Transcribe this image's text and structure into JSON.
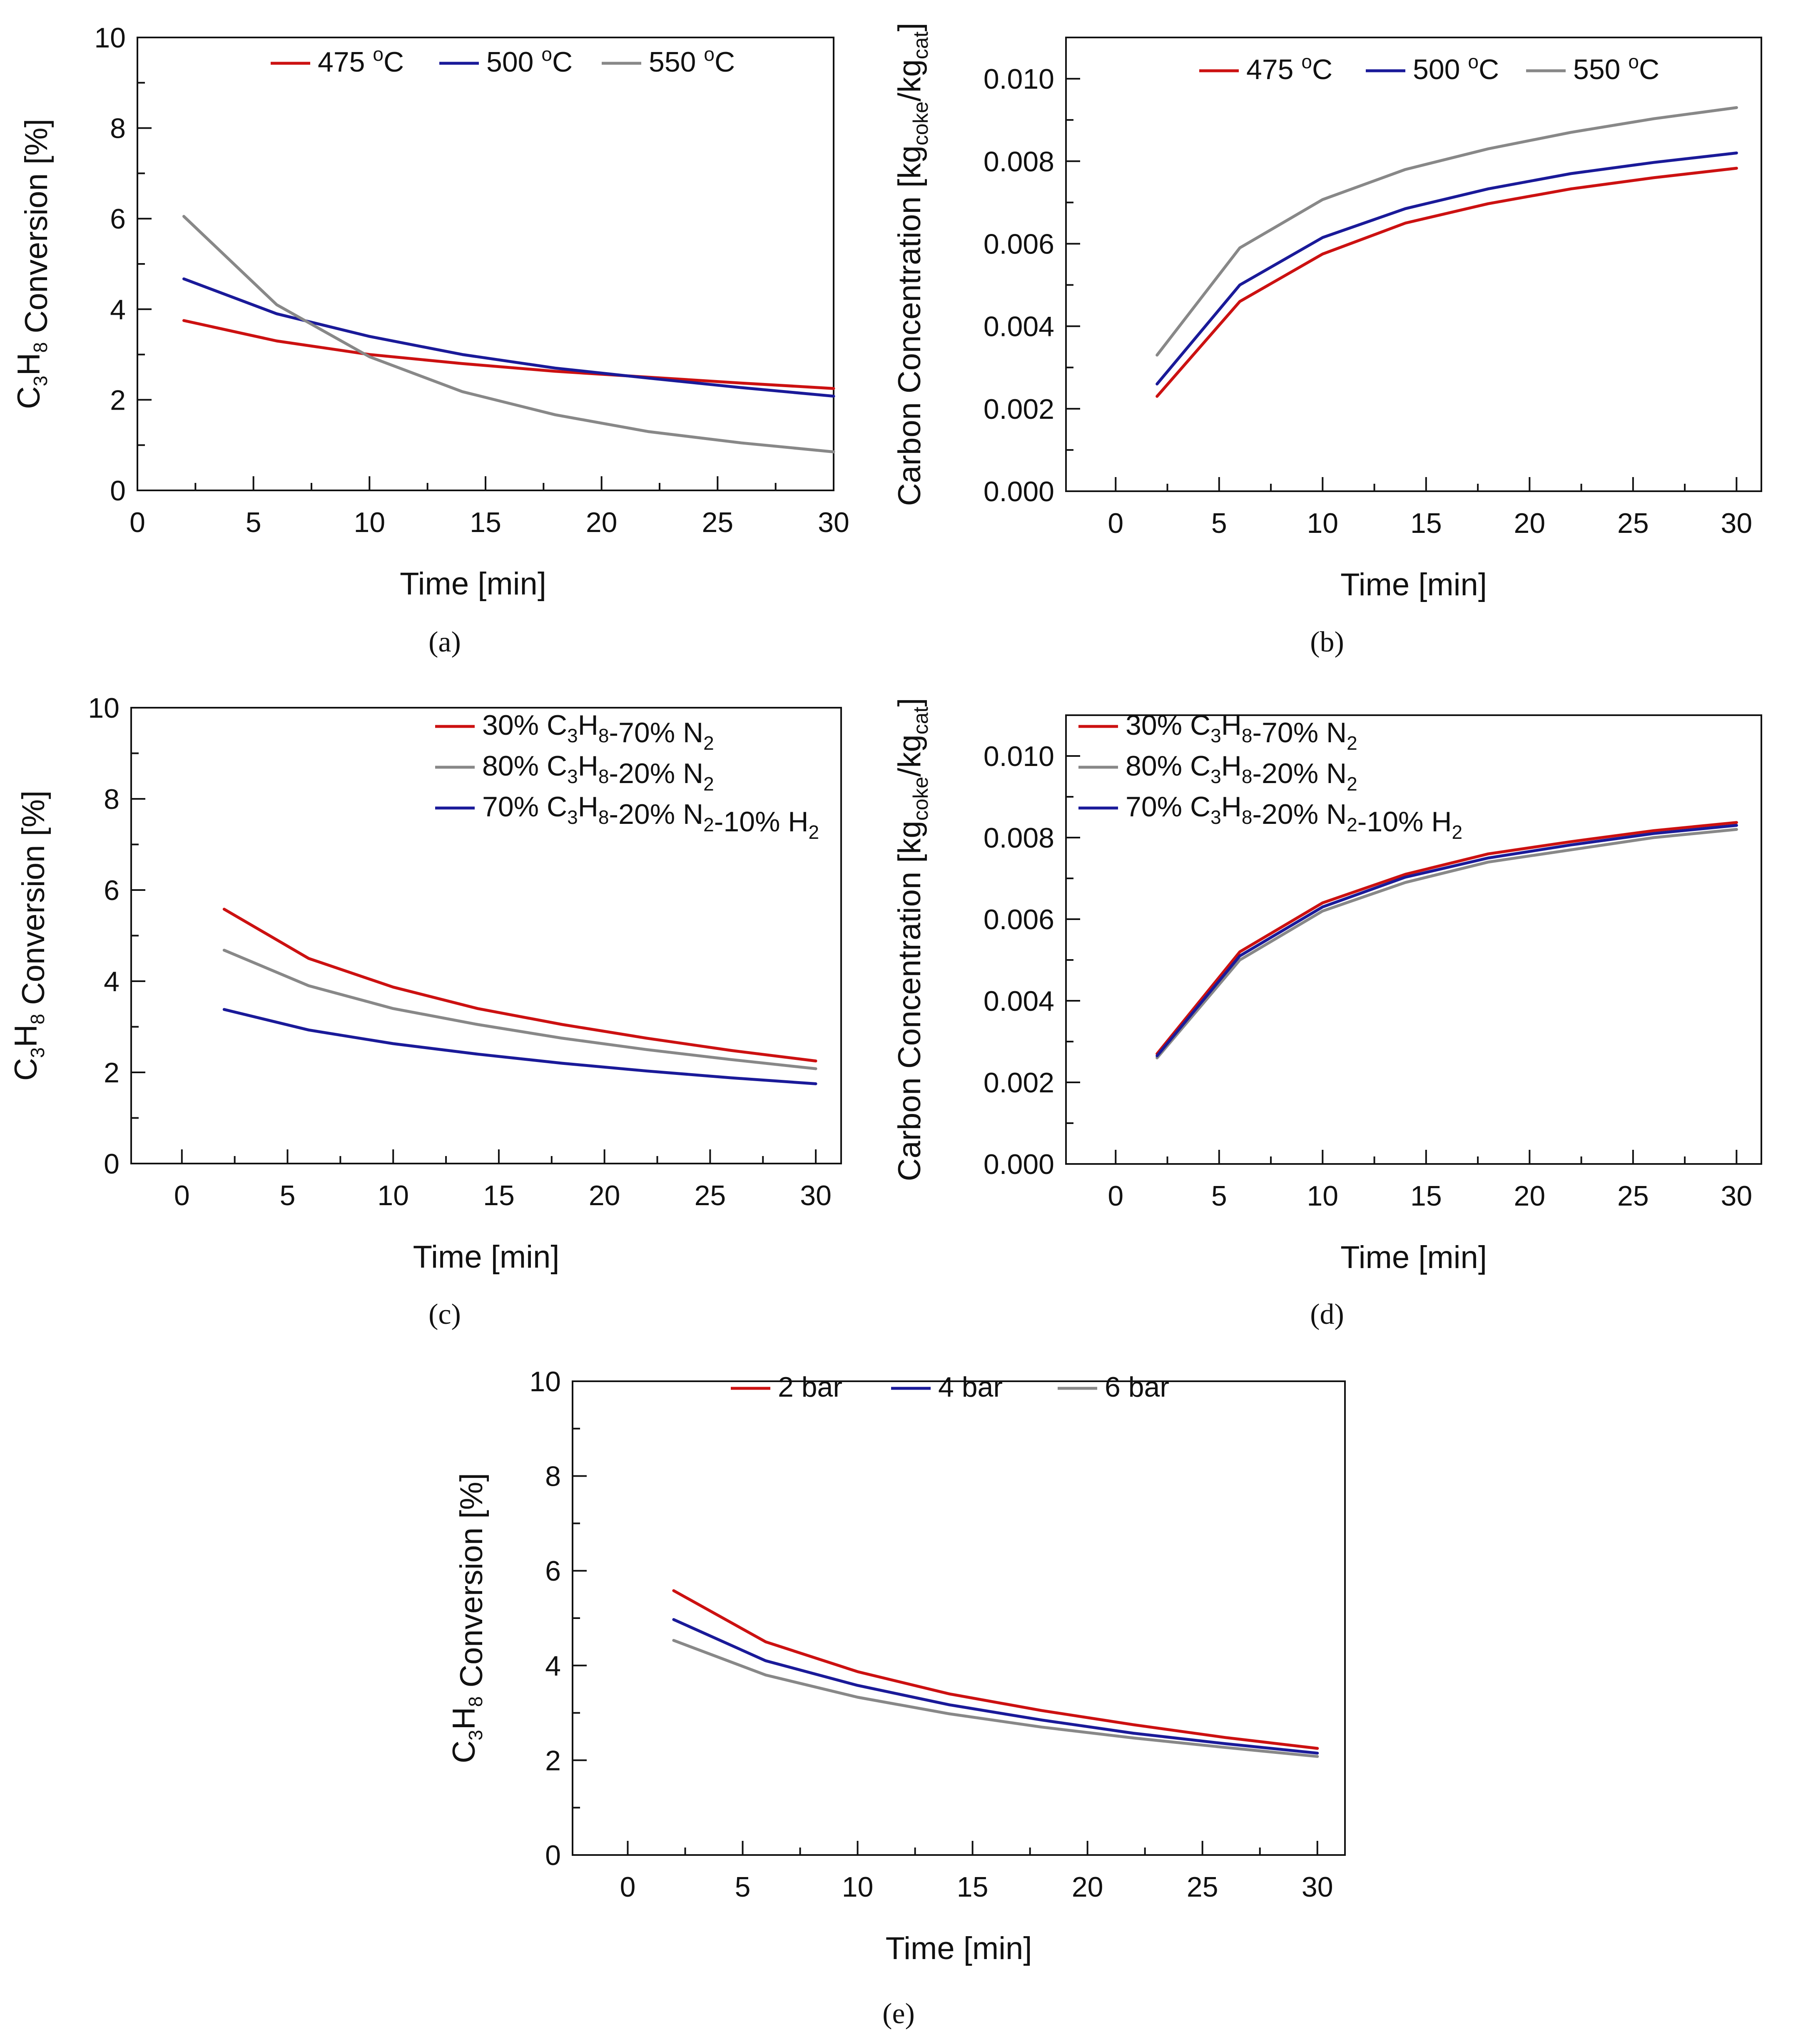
{
  "figure": {
    "panels": [
      {
        "caption": "(a)",
        "legend": [
          {
            "label_main": "475 ",
            "label_sup": "o",
            "label_tail": "C",
            "color": "#cc1111"
          },
          {
            "label_main": "500 ",
            "label_sup": "o",
            "label_tail": "C",
            "color": "#1a1a99"
          },
          {
            "label_main": "550 ",
            "label_sup": "o",
            "label_tail": "C",
            "color": "#888888"
          }
        ]
      },
      {
        "caption": "(b)",
        "legend": [
          {
            "label_main": "475 ",
            "label_sup": "o",
            "label_tail": "C",
            "color": "#cc1111"
          },
          {
            "label_main": "500 ",
            "label_sup": "o",
            "label_tail": "C",
            "color": "#1a1a99"
          },
          {
            "label_main": "550 ",
            "label_sup": "o",
            "label_tail": "C",
            "color": "#888888"
          }
        ]
      },
      {
        "caption": "(c)",
        "legend": [
          {
            "text": "30% C3H8-70% N2",
            "color": "#cc1111"
          },
          {
            "text": "80% C3H8-20% N2",
            "color": "#888888"
          },
          {
            "text": "70% C3H8-20% N2-10% H2",
            "color": "#1a1a99"
          }
        ]
      },
      {
        "caption": "(d)",
        "legend": [
          {
            "text": "30% C3H8-70% N2",
            "color": "#cc1111"
          },
          {
            "text": "80% C3H8-20% N2",
            "color": "#888888"
          },
          {
            "text": "70% C3H8-20% N2-10% H2",
            "color": "#1a1a99"
          }
        ]
      },
      {
        "caption": "(e)",
        "legend": [
          {
            "text": "2 bar",
            "color": "#cc1111"
          },
          {
            "text": "4 bar",
            "color": "#1a1a99"
          },
          {
            "text": "6 bar",
            "color": "#888888"
          }
        ]
      }
    ]
  },
  "chart_data": [
    {
      "type": "line",
      "panel": "a",
      "xlabel": "Time [min]",
      "ylabel": "C3H8 Conversion [%]",
      "xlim": [
        0,
        30
      ],
      "ylim": [
        0,
        10
      ],
      "xticks": [
        0,
        5,
        10,
        15,
        20,
        25,
        30
      ],
      "yticks": [
        0,
        2,
        4,
        6,
        8,
        10
      ],
      "ytick_labels": [
        "0",
        "2",
        "4",
        "6",
        "8",
        "10"
      ],
      "x": [
        2,
        6,
        10,
        14,
        18,
        22,
        26,
        30
      ],
      "series": [
        {
          "name": "475 oC",
          "color": "#cc1111",
          "values": [
            3.75,
            3.3,
            3.0,
            2.8,
            2.63,
            2.5,
            2.37,
            2.25
          ]
        },
        {
          "name": "500 oC",
          "color": "#1a1a99",
          "values": [
            4.67,
            3.9,
            3.4,
            3.0,
            2.7,
            2.48,
            2.27,
            2.08
          ]
        },
        {
          "name": "550 oC",
          "color": "#888888",
          "values": [
            6.05,
            4.1,
            2.95,
            2.18,
            1.67,
            1.3,
            1.05,
            0.85
          ]
        }
      ]
    },
    {
      "type": "line",
      "panel": "b",
      "xlabel": "Time [min]",
      "ylabel": "Carbon Concentration [kgcoke/kgcat]",
      "xlim": [
        -2.4,
        31.2
      ],
      "ylim": [
        0,
        0.011
      ],
      "xticks": [
        0,
        5,
        10,
        15,
        20,
        25,
        30
      ],
      "yticks": [
        0,
        0.002,
        0.004,
        0.006,
        0.008,
        0.01
      ],
      "ytick_labels": [
        "0.000",
        "0.002",
        "0.004",
        "0.006",
        "0.008",
        "0.010"
      ],
      "x": [
        2,
        6,
        10,
        14,
        18,
        22,
        26,
        30
      ],
      "series": [
        {
          "name": "475 oC",
          "color": "#cc1111",
          "values": [
            0.0023,
            0.0046,
            0.00575,
            0.0065,
            0.00697,
            0.00733,
            0.0076,
            0.00783
          ]
        },
        {
          "name": "500 oC",
          "color": "#1a1a99",
          "values": [
            0.0026,
            0.005,
            0.00615,
            0.00685,
            0.00733,
            0.0077,
            0.00797,
            0.0082
          ]
        },
        {
          "name": "550 oC",
          "color": "#888888",
          "values": [
            0.0033,
            0.0059,
            0.00707,
            0.0078,
            0.0083,
            0.0087,
            0.00903,
            0.0093
          ]
        }
      ]
    },
    {
      "type": "line",
      "panel": "c",
      "xlabel": "Time [min]",
      "ylabel": "C3H8 Conversion [%]",
      "xlim": [
        -2.4,
        31.2
      ],
      "ylim": [
        0,
        10
      ],
      "xticks": [
        0,
        5,
        10,
        15,
        20,
        25,
        30
      ],
      "yticks": [
        0,
        2,
        4,
        6,
        8,
        10
      ],
      "ytick_labels": [
        "0",
        "2",
        "4",
        "6",
        "8",
        "10"
      ],
      "x": [
        2,
        6,
        10,
        14,
        18,
        22,
        26,
        30
      ],
      "series": [
        {
          "name": "30% C3H8-70% N2",
          "color": "#cc1111",
          "values": [
            5.58,
            4.5,
            3.87,
            3.4,
            3.05,
            2.75,
            2.48,
            2.25
          ]
        },
        {
          "name": "80% C3H8-20% N2",
          "color": "#888888",
          "values": [
            4.68,
            3.9,
            3.4,
            3.05,
            2.75,
            2.5,
            2.28,
            2.08
          ]
        },
        {
          "name": "70% C3H8-20% N2-10% H2",
          "color": "#1a1a99",
          "values": [
            3.38,
            2.93,
            2.63,
            2.4,
            2.2,
            2.03,
            1.88,
            1.75
          ]
        }
      ]
    },
    {
      "type": "line",
      "panel": "d",
      "xlabel": "Time [min]",
      "ylabel": "Carbon Concentration [kgcoke/kgcat]",
      "xlim": [
        -2.4,
        31.2
      ],
      "ylim": [
        0,
        0.011
      ],
      "xticks": [
        0,
        5,
        10,
        15,
        20,
        25,
        30
      ],
      "yticks": [
        0,
        0.002,
        0.004,
        0.006,
        0.008,
        0.01
      ],
      "ytick_labels": [
        "0.000",
        "0.002",
        "0.004",
        "0.006",
        "0.008",
        "0.010"
      ],
      "x": [
        2,
        6,
        10,
        14,
        18,
        22,
        26,
        30
      ],
      "series": [
        {
          "name": "30% C3H8-70% N2",
          "color": "#cc1111",
          "values": [
            0.0027,
            0.0052,
            0.0064,
            0.0071,
            0.0076,
            0.0079,
            0.00817,
            0.00837
          ]
        },
        {
          "name": "80% C3H8-20% N2",
          "color": "#888888",
          "values": [
            0.0026,
            0.005,
            0.0062,
            0.0069,
            0.0074,
            0.0077,
            0.008,
            0.0082
          ]
        },
        {
          "name": "70% C3H8-20% N2-10% H2",
          "color": "#1a1a99",
          "values": [
            0.00265,
            0.0051,
            0.0063,
            0.00703,
            0.0075,
            0.00782,
            0.0081,
            0.0083
          ]
        }
      ]
    },
    {
      "type": "line",
      "panel": "e",
      "xlabel": "Time [min]",
      "ylabel": "C3H8 Conversion [%]",
      "xlim": [
        -2.4,
        31.2
      ],
      "ylim": [
        0,
        10
      ],
      "xticks": [
        0,
        5,
        10,
        15,
        20,
        25,
        30
      ],
      "yticks": [
        0,
        2,
        4,
        6,
        8,
        10
      ],
      "ytick_labels": [
        "0",
        "2",
        "4",
        "6",
        "8",
        "10"
      ],
      "x": [
        2,
        6,
        10,
        14,
        18,
        22,
        26,
        30
      ],
      "series": [
        {
          "name": "2 bar",
          "color": "#cc1111",
          "values": [
            5.58,
            4.5,
            3.87,
            3.4,
            3.05,
            2.75,
            2.48,
            2.25
          ]
        },
        {
          "name": "4 bar",
          "color": "#1a1a99",
          "values": [
            4.97,
            4.1,
            3.58,
            3.17,
            2.85,
            2.57,
            2.35,
            2.15
          ]
        },
        {
          "name": "6 bar",
          "color": "#888888",
          "values": [
            4.53,
            3.8,
            3.33,
            2.98,
            2.7,
            2.47,
            2.27,
            2.08
          ]
        }
      ]
    }
  ]
}
